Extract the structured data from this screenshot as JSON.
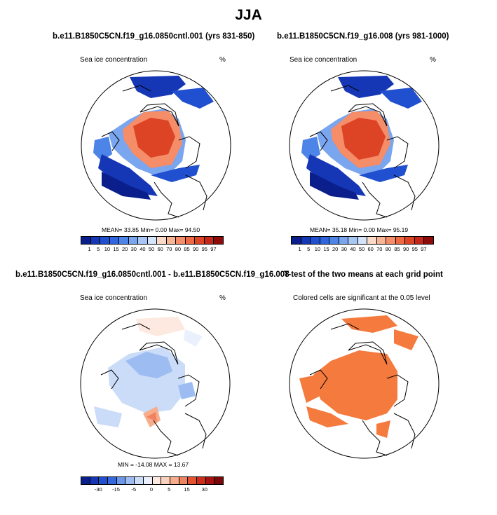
{
  "title": "JJA",
  "panels": [
    {
      "title": "b.e11.B1850C5CN.f19_g16.0850cntl.001 (yrs 831-850)",
      "left_label": "Sea ice concentration",
      "right_label": "%",
      "stats": "MEAN=  33.85  Min=   0.00  Max=  94.50",
      "colorbar_ticks": [
        "1",
        "5",
        "10",
        "15",
        "20",
        "30",
        "40",
        "50",
        "60",
        "70",
        "80",
        "85",
        "90",
        "95",
        "97"
      ]
    },
    {
      "title": "b.e11.B1850C5CN.f19_g16.008 (yrs 981-1000)",
      "left_label": "Sea ice concentration",
      "right_label": "%",
      "stats": "MEAN=  35.18  Min=   0.00  Max=  95.19",
      "colorbar_ticks": [
        "1",
        "5",
        "10",
        "15",
        "20",
        "30",
        "40",
        "50",
        "60",
        "70",
        "80",
        "85",
        "90",
        "95",
        "97"
      ]
    },
    {
      "title": "b.e11.B1850C5CN.f19_g16.0850cntl.001 - b.e11.B1850C5CN.f19_g16.008",
      "left_label": "Sea ice concentration",
      "right_label": "%",
      "stats": "MIN = -14.08 MAX =  13.67",
      "colorbar_ticks": [
        "-30",
        "-15",
        "-5",
        "0",
        "5",
        "15",
        "30"
      ]
    },
    {
      "title": "T-test of the two means at each grid point",
      "center_label": "Colored cells are significant at the 0.05 level"
    }
  ],
  "colorbars": {
    "concentration": [
      "#0a1f8c",
      "#1537b5",
      "#2050cf",
      "#2f66dd",
      "#4d84e8",
      "#7aa5ef",
      "#a8c6f5",
      "#d4e4fa",
      "#fbdac7",
      "#f7b596",
      "#f58d68",
      "#ee6a43",
      "#dd4426",
      "#c4261a",
      "#8e0b0b"
    ],
    "difference": [
      "#0a1f8c",
      "#1537b5",
      "#2050cf",
      "#3468dc",
      "#6b96ea",
      "#9cbcf2",
      "#cadcf8",
      "#eaf1fc",
      "#fde9df",
      "#fbd1bb",
      "#f7ad8c",
      "#f18260",
      "#e4532e",
      "#cc2e1c",
      "#a41212",
      "#7a0808"
    ]
  }
}
